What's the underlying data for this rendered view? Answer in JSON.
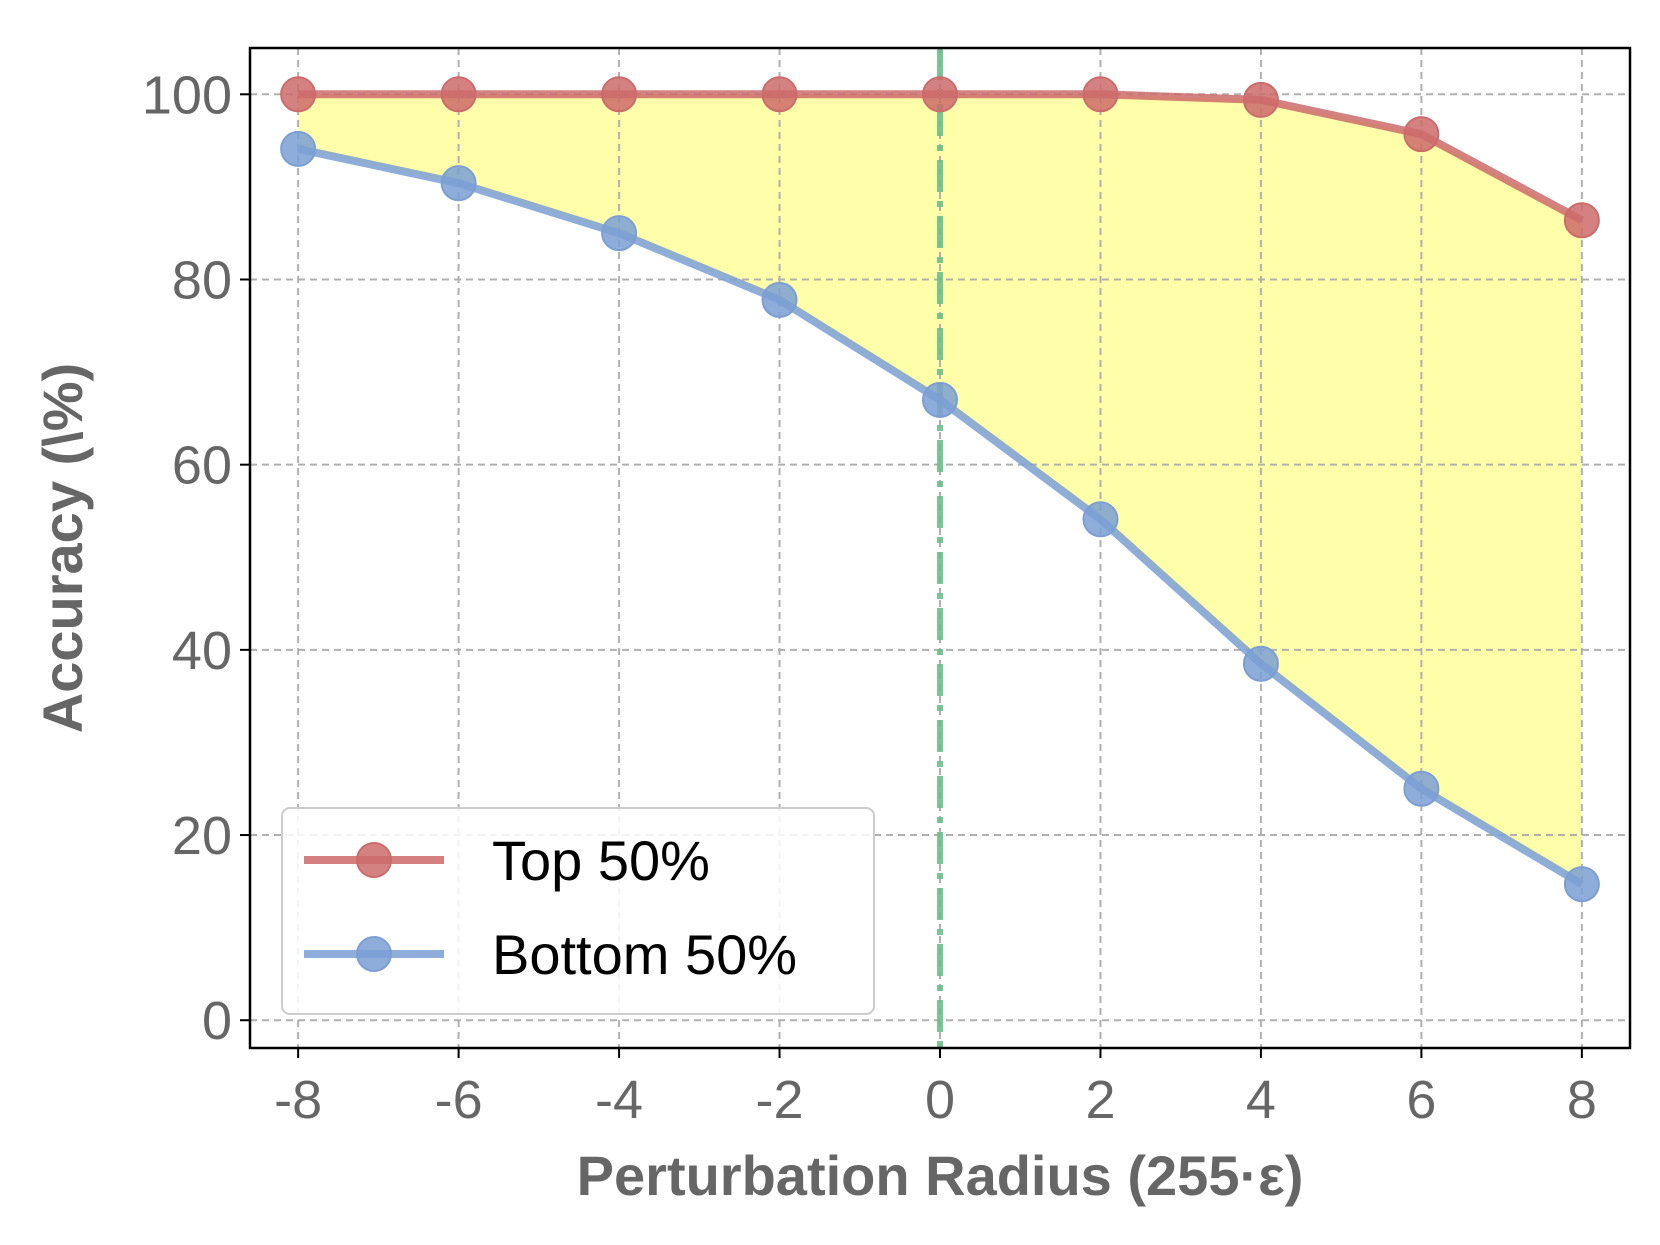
{
  "chart_data": {
    "type": "line",
    "title": "",
    "xlabel": "Perturbation Radius (255·ε)",
    "ylabel": "Accuracy (\\%)",
    "x": [
      -8,
      -6,
      -4,
      -2,
      0,
      2,
      4,
      6,
      8
    ],
    "x_tick_labels": [
      "-8",
      "-6",
      "-4",
      "-2",
      "0",
      "2",
      "4",
      "6",
      "8"
    ],
    "y_tick_labels": [
      "0",
      "20",
      "40",
      "60",
      "80",
      "100"
    ],
    "y_ticks": [
      0,
      20,
      40,
      60,
      80,
      100
    ],
    "xlim": [
      -8.6,
      8.6
    ],
    "ylim": [
      -3,
      105
    ],
    "grid": true,
    "legend_position": "lower-left",
    "series": [
      {
        "name": "Top 50%",
        "color": "#cd6b6b",
        "values": [
          100,
          100,
          100,
          100,
          100,
          100,
          99.4,
          95.7,
          86.4
        ]
      },
      {
        "name": "Bottom 50%",
        "color": "#7b9fd4",
        "values": [
          94.1,
          90.4,
          85.0,
          77.8,
          67.0,
          54.1,
          38.5,
          25.0,
          14.7
        ]
      }
    ],
    "fill_between": {
      "color": "#ffffaa"
    },
    "vline": {
      "x": 0,
      "color": "#6cc08b",
      "style": "dash-dot"
    }
  }
}
